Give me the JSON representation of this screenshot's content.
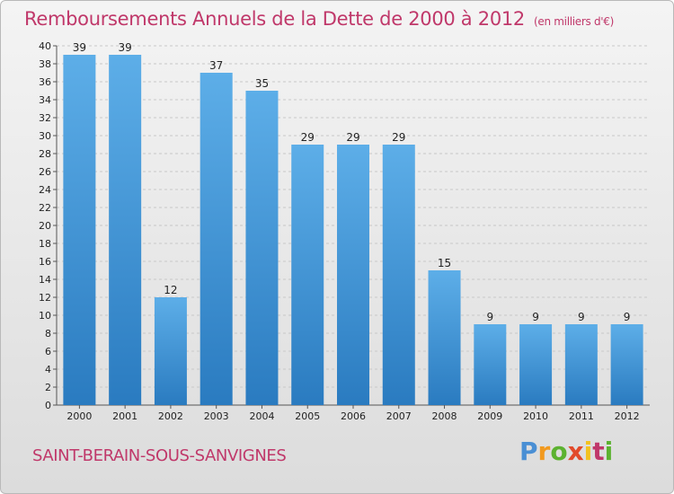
{
  "header": {
    "title": "Remboursements Annuels de la Dette de 2000 à 2012",
    "subtitle": "(en milliers d'€)"
  },
  "footer": {
    "commune": "SAINT-BERAIN-SOUS-SANVIGNES",
    "logo": {
      "letters": [
        "P",
        "r",
        "o",
        "x",
        "i",
        "t",
        "i"
      ]
    }
  },
  "colors": {
    "title": "#c0386a",
    "bar_top": "#5daee8",
    "bar_bottom": "#2a7bc0"
  },
  "chart_data": {
    "type": "bar",
    "title": "Remboursements Annuels de la Dette de 2000 à 2012",
    "categories": [
      "2000",
      "2001",
      "2002",
      "2003",
      "2004",
      "2005",
      "2006",
      "2007",
      "2008",
      "2009",
      "2010",
      "2011",
      "2012"
    ],
    "values": [
      39,
      39,
      12,
      37,
      35,
      29,
      29,
      29,
      15,
      9,
      9,
      9,
      9
    ],
    "ylim": [
      0,
      40
    ],
    "yticks": [
      0,
      2,
      4,
      6,
      8,
      10,
      12,
      14,
      16,
      18,
      20,
      22,
      24,
      26,
      28,
      30,
      32,
      34,
      36,
      38,
      40
    ],
    "grid": "horizontal-dashed"
  }
}
